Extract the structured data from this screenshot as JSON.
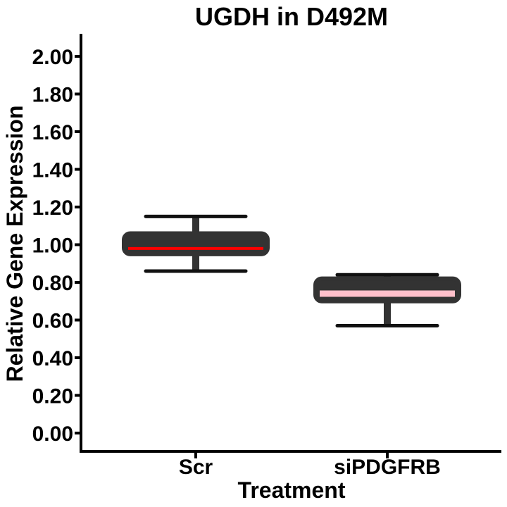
{
  "chart_data": {
    "type": "box",
    "title": "UGDH in D492M",
    "xlabel": "Treatment",
    "ylabel": "Relative Gene Expression",
    "categories": [
      "Scr",
      "siPDGFRB"
    ],
    "ylim": [
      -0.05,
      2.1
    ],
    "yticks": [
      "0.00",
      "0.20",
      "0.40",
      "0.60",
      "0.80",
      "1.00",
      "1.20",
      "1.40",
      "1.60",
      "1.80",
      "2.00"
    ],
    "boxes": [
      {
        "category": "Scr",
        "whisker_low": 0.86,
        "q1": 0.95,
        "median": 0.98,
        "q3": 1.06,
        "whisker_high": 1.15,
        "median_color": "#ff0000"
      },
      {
        "category": "siPDGFRB",
        "whisker_low": 0.57,
        "q1": 0.7,
        "median": 0.74,
        "q3": 0.82,
        "whisker_high": 0.84,
        "median_color": "#ffc0cb"
      }
    ],
    "box_color": "#333333",
    "whisker_color": "#111111",
    "grid": false,
    "legend": "none"
  }
}
